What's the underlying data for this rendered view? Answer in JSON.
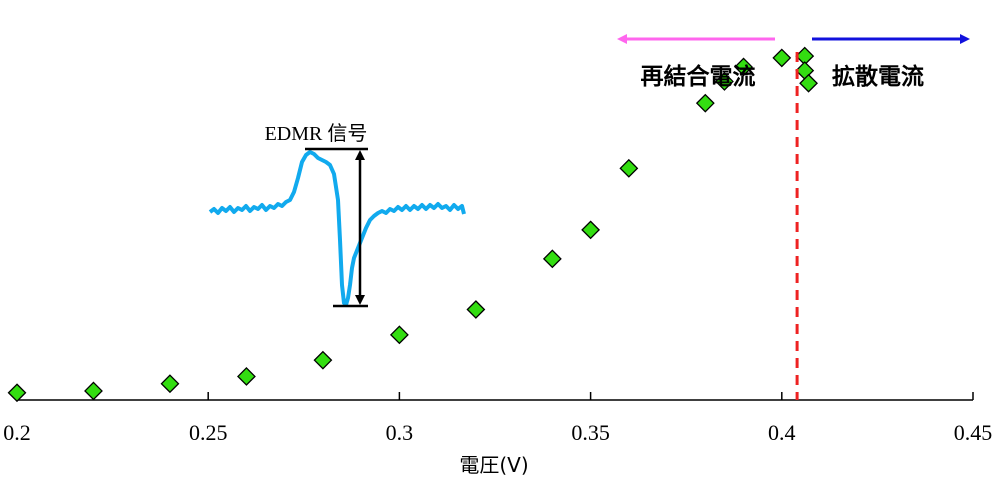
{
  "chart_data": {
    "type": "scatter",
    "title": "",
    "xlabel": "電圧(V)",
    "ylabel": "",
    "xlim": [
      0.2,
      0.45
    ],
    "ylim": [
      0,
      1
    ],
    "x_ticks": [
      0.2,
      0.25,
      0.3,
      0.35,
      0.4,
      0.45
    ],
    "x_tick_labels": [
      "0.2",
      "0.25",
      "0.3",
      "0.35",
      "0.4",
      "0.45"
    ],
    "y_axis_visible": false,
    "grid": false,
    "legend": "none",
    "series": [
      {
        "marker": "diamond",
        "color": "#33dd11",
        "edge_color": "#000000",
        "points": [
          {
            "x": 0.2,
            "y": 0.02
          },
          {
            "x": 0.22,
            "y": 0.025
          },
          {
            "x": 0.24,
            "y": 0.045
          },
          {
            "x": 0.26,
            "y": 0.065
          },
          {
            "x": 0.28,
            "y": 0.11
          },
          {
            "x": 0.3,
            "y": 0.18
          },
          {
            "x": 0.32,
            "y": 0.25
          },
          {
            "x": 0.34,
            "y": 0.39
          },
          {
            "x": 0.35,
            "y": 0.47
          },
          {
            "x": 0.36,
            "y": 0.64
          },
          {
            "x": 0.38,
            "y": 0.82
          },
          {
            "x": 0.385,
            "y": 0.88
          },
          {
            "x": 0.39,
            "y": 0.92
          },
          {
            "x": 0.4,
            "y": 0.945
          },
          {
            "x": 0.406,
            "y": 0.95
          },
          {
            "x": 0.406,
            "y": 0.91
          },
          {
            "x": 0.407,
            "y": 0.875
          }
        ]
      }
    ],
    "annotations": {
      "threshold_line": {
        "x": 0.404,
        "color": "#ee2222",
        "style": "dashed"
      },
      "left_region": {
        "label": "再結合電流",
        "arrow_color": "#ff66ee",
        "direction": "left"
      },
      "right_region": {
        "label": "拡散電流",
        "arrow_color": "#1111dd",
        "direction": "right"
      },
      "inset": {
        "label": "EDMR 信号",
        "trace_color": "#11aaee"
      }
    }
  }
}
